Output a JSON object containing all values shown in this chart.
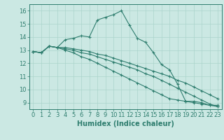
{
  "xlabel": "Humidex (Indice chaleur)",
  "bg_color": "#cbe8e3",
  "line_color": "#2e7d6e",
  "grid_color": "#aad4cc",
  "xlim": [
    -0.5,
    23.5
  ],
  "ylim": [
    8.5,
    16.5
  ],
  "xticks": [
    0,
    1,
    2,
    3,
    4,
    5,
    6,
    7,
    8,
    9,
    10,
    11,
    12,
    13,
    14,
    15,
    16,
    17,
    18,
    19,
    20,
    21,
    22,
    23
  ],
  "yticks": [
    9,
    10,
    11,
    12,
    13,
    14,
    15,
    16
  ],
  "series": [
    [
      12.9,
      12.8,
      13.3,
      13.2,
      13.8,
      13.9,
      14.1,
      14.0,
      15.3,
      15.5,
      15.7,
      16.0,
      14.9,
      13.9,
      13.6,
      12.8,
      11.9,
      11.5,
      10.4,
      9.1,
      9.1,
      9.0,
      8.8,
      8.8
    ],
    [
      12.9,
      12.8,
      13.3,
      13.2,
      13.2,
      13.1,
      13.0,
      12.9,
      12.7,
      12.6,
      12.4,
      12.2,
      12.0,
      11.8,
      11.6,
      11.4,
      11.2,
      11.0,
      10.7,
      10.5,
      10.2,
      9.9,
      9.6,
      9.3
    ],
    [
      12.9,
      12.8,
      13.3,
      13.2,
      13.1,
      13.0,
      12.8,
      12.7,
      12.5,
      12.3,
      12.1,
      11.9,
      11.7,
      11.5,
      11.2,
      11.0,
      10.7,
      10.4,
      10.1,
      9.8,
      9.5,
      9.2,
      8.9,
      8.7
    ],
    [
      12.9,
      12.8,
      13.3,
      13.2,
      13.0,
      12.8,
      12.5,
      12.3,
      12.0,
      11.7,
      11.4,
      11.1,
      10.8,
      10.5,
      10.2,
      9.9,
      9.6,
      9.3,
      9.2,
      9.1,
      9.0,
      8.9,
      8.8,
      8.7
    ]
  ],
  "tick_fontsize": 6,
  "xlabel_fontsize": 7
}
